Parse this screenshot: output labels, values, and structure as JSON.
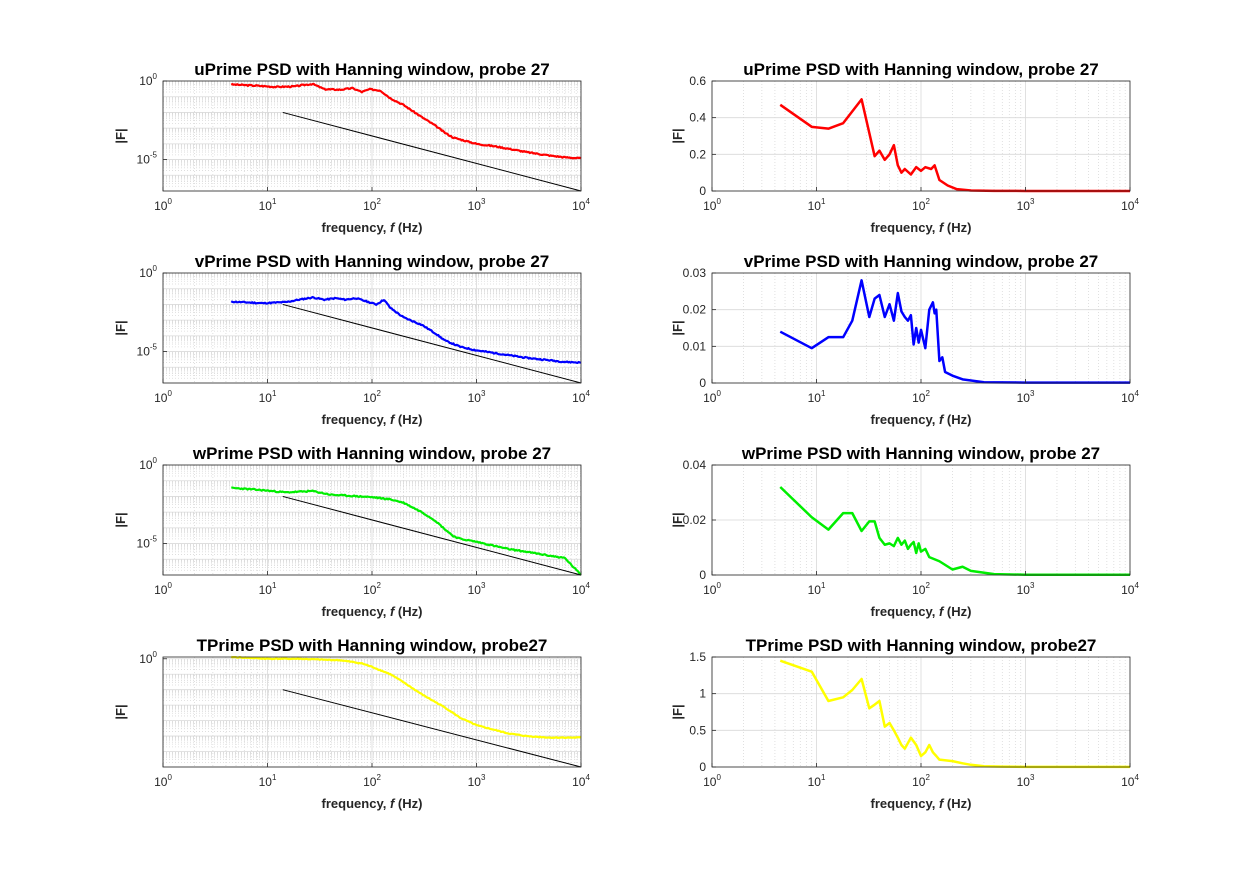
{
  "figure": {
    "background": "#ffffff",
    "grid_color": "#d9d9d9",
    "axis_color": "#262626",
    "reference_line_color": "#000000"
  },
  "chart_data": [
    {
      "id": "u-log",
      "type": "line",
      "title": "uPrime PSD with Hanning window, probe 27",
      "xlabel_main": "frequency, ",
      "xlabel_italic": "f",
      "xlabel_tail": " (Hz)",
      "ylabel": "|F|",
      "xscale": "log",
      "yscale": "log",
      "xlim": [
        1,
        10000
      ],
      "ylim": [
        1e-07,
        1
      ],
      "xticks": [
        {
          "base": "10",
          "exp": "0",
          "value": 1
        },
        {
          "base": "10",
          "exp": "1",
          "value": 10
        },
        {
          "base": "10",
          "exp": "2",
          "value": 100
        },
        {
          "base": "10",
          "exp": "3",
          "value": 1000
        },
        {
          "base": "10",
          "exp": "4",
          "value": 10000
        }
      ],
      "yticks": [
        {
          "base": "10",
          "exp": "0",
          "value": 1
        },
        {
          "base": "10",
          "exp": "-5",
          "value": 1e-05
        }
      ],
      "grid": true,
      "series": [
        {
          "color": "#ff0000",
          "width": 2.2,
          "noise": 0.07,
          "seed": 3,
          "x": [
            4.5,
            8,
            12,
            18,
            22,
            27,
            35,
            50,
            65,
            80,
            95,
            120,
            150,
            200,
            300,
            400,
            500,
            600,
            800,
            1000,
            1500,
            2000,
            3000,
            5000,
            7000,
            10000
          ],
          "y": [
            0.6,
            0.5,
            0.42,
            0.45,
            0.55,
            0.65,
            0.3,
            0.28,
            0.35,
            0.2,
            0.3,
            0.25,
            0.08,
            0.03,
            0.005,
            0.0015,
            0.0005,
            0.00025,
            0.00015,
            0.0001,
            7e-05,
            5e-05,
            3e-05,
            1.8e-05,
            1.4e-05,
            1.2e-05
          ]
        },
        {
          "color": "#000000",
          "width": 1,
          "noise": 0,
          "seed": 0,
          "x": [
            14,
            10000
          ],
          "y": [
            0.01,
            1e-07
          ]
        }
      ]
    },
    {
      "id": "u-lin",
      "type": "line",
      "title": "uPrime PSD with Hanning window, probe 27",
      "xlabel_main": "frequency, ",
      "xlabel_italic": "f",
      "xlabel_tail": " (Hz)",
      "ylabel": "|F|",
      "xscale": "log",
      "yscale": "linear",
      "xlim": [
        1,
        10000
      ],
      "ylim": [
        0,
        0.6
      ],
      "xticks": [
        {
          "base": "10",
          "exp": "0",
          "value": 1
        },
        {
          "base": "10",
          "exp": "1",
          "value": 10
        },
        {
          "base": "10",
          "exp": "2",
          "value": 100
        },
        {
          "base": "10",
          "exp": "3",
          "value": 1000
        },
        {
          "base": "10",
          "exp": "4",
          "value": 10000
        }
      ],
      "yticks": [
        {
          "label": "0",
          "value": 0
        },
        {
          "label": "0.2",
          "value": 0.2
        },
        {
          "label": "0.4",
          "value": 0.4
        },
        {
          "label": "0.6",
          "value": 0.6
        }
      ],
      "grid": true,
      "series": [
        {
          "color": "#ff0000",
          "width": 2.5,
          "noise": 0,
          "seed": 0,
          "x": [
            4.5,
            9,
            13,
            18,
            27,
            36,
            40,
            45,
            50,
            55,
            60,
            65,
            70,
            80,
            90,
            100,
            110,
            125,
            135,
            150,
            180,
            220,
            300,
            500,
            1000,
            10000
          ],
          "y": [
            0.47,
            0.35,
            0.34,
            0.37,
            0.5,
            0.19,
            0.22,
            0.17,
            0.2,
            0.25,
            0.14,
            0.1,
            0.12,
            0.09,
            0.13,
            0.11,
            0.13,
            0.12,
            0.14,
            0.06,
            0.03,
            0.01,
            0.003,
            0.001,
            0.0003,
            0.0001
          ]
        }
      ]
    },
    {
      "id": "v-log",
      "type": "line",
      "title": "vPrime PSD with Hanning window, probe 27",
      "xlabel_main": "frequency, ",
      "xlabel_italic": "f",
      "xlabel_tail": " (Hz)",
      "ylabel": "|F|",
      "xscale": "log",
      "yscale": "log",
      "xlim": [
        1,
        10000
      ],
      "ylim": [
        1e-07,
        1
      ],
      "xticks": [
        {
          "base": "10",
          "exp": "0",
          "value": 1
        },
        {
          "base": "10",
          "exp": "1",
          "value": 10
        },
        {
          "base": "10",
          "exp": "2",
          "value": 100
        },
        {
          "base": "10",
          "exp": "3",
          "value": 1000
        },
        {
          "base": "10",
          "exp": "4",
          "value": 10000
        }
      ],
      "yticks": [
        {
          "base": "10",
          "exp": "0",
          "value": 1
        },
        {
          "base": "10",
          "exp": "-5",
          "value": 1e-05
        }
      ],
      "grid": true,
      "series": [
        {
          "color": "#0000ff",
          "width": 2.2,
          "noise": 0.07,
          "seed": 11,
          "x": [
            4.5,
            9,
            15,
            20,
            27,
            35,
            45,
            55,
            70,
            90,
            110,
            130,
            150,
            200,
            300,
            400,
            500,
            700,
            1000,
            1500,
            2000,
            3000,
            5000,
            7000,
            10000
          ],
          "y": [
            0.015,
            0.012,
            0.014,
            0.02,
            0.028,
            0.02,
            0.025,
            0.02,
            0.025,
            0.015,
            0.01,
            0.02,
            0.006,
            0.0015,
            0.0005,
            0.00015,
            5e-05,
            2e-05,
            1.2e-05,
            8e-06,
            6e-06,
            4e-06,
            2.8e-06,
            2.2e-06,
            2e-06
          ]
        },
        {
          "color": "#000000",
          "width": 1,
          "noise": 0,
          "seed": 0,
          "x": [
            14,
            10000
          ],
          "y": [
            0.01,
            1e-07
          ]
        }
      ]
    },
    {
      "id": "v-lin",
      "type": "line",
      "title": "vPrime PSD with Hanning window, probe 27",
      "xlabel_main": "frequency, ",
      "xlabel_italic": "f",
      "xlabel_tail": " (Hz)",
      "ylabel": "|F|",
      "xscale": "log",
      "yscale": "linear",
      "xlim": [
        1,
        10000
      ],
      "ylim": [
        0,
        0.03
      ],
      "xticks": [
        {
          "base": "10",
          "exp": "0",
          "value": 1
        },
        {
          "base": "10",
          "exp": "1",
          "value": 10
        },
        {
          "base": "10",
          "exp": "2",
          "value": 100
        },
        {
          "base": "10",
          "exp": "3",
          "value": 1000
        },
        {
          "base": "10",
          "exp": "4",
          "value": 10000
        }
      ],
      "yticks": [
        {
          "label": "0",
          "value": 0
        },
        {
          "label": "0.01",
          "value": 0.01
        },
        {
          "label": "0.02",
          "value": 0.02
        },
        {
          "label": "0.03",
          "value": 0.03
        }
      ],
      "grid": true,
      "series": [
        {
          "color": "#0000ff",
          "width": 2.5,
          "noise": 0,
          "seed": 0,
          "x": [
            4.5,
            9,
            13,
            18,
            22,
            27,
            32,
            36,
            40,
            45,
            50,
            55,
            60,
            65,
            70,
            75,
            80,
            85,
            90,
            95,
            100,
            110,
            120,
            130,
            135,
            140,
            150,
            160,
            170,
            200,
            250,
            400,
            1000,
            10000
          ],
          "y": [
            0.014,
            0.0095,
            0.0125,
            0.0125,
            0.017,
            0.028,
            0.018,
            0.023,
            0.024,
            0.018,
            0.0215,
            0.017,
            0.0245,
            0.0195,
            0.018,
            0.017,
            0.0185,
            0.0105,
            0.015,
            0.011,
            0.0145,
            0.0095,
            0.02,
            0.022,
            0.019,
            0.02,
            0.006,
            0.007,
            0.003,
            0.002,
            0.001,
            0.0002,
            0.0001,
            0.0001
          ]
        }
      ]
    },
    {
      "id": "w-log",
      "type": "line",
      "title": "wPrime PSD with Hanning window, probe 27",
      "xlabel_main": "frequency, ",
      "xlabel_italic": "f",
      "xlabel_tail": " (Hz)",
      "ylabel": "|F|",
      "xscale": "log",
      "yscale": "log",
      "xlim": [
        1,
        10000
      ],
      "ylim": [
        1e-07,
        1
      ],
      "xticks": [
        {
          "base": "10",
          "exp": "0",
          "value": 1
        },
        {
          "base": "10",
          "exp": "1",
          "value": 10
        },
        {
          "base": "10",
          "exp": "2",
          "value": 100
        },
        {
          "base": "10",
          "exp": "3",
          "value": 1000
        },
        {
          "base": "10",
          "exp": "4",
          "value": 10000
        }
      ],
      "yticks": [
        {
          "base": "10",
          "exp": "0",
          "value": 1
        },
        {
          "base": "10",
          "exp": "-5",
          "value": 1e-05
        }
      ],
      "grid": true,
      "series": [
        {
          "color": "#00ee00",
          "width": 2.2,
          "noise": 0.07,
          "seed": 23,
          "x": [
            4.5,
            9,
            15,
            20,
            27,
            40,
            60,
            100,
            150,
            200,
            300,
            400,
            500,
            600,
            700,
            1000,
            1500,
            2000,
            3000,
            5000,
            7000,
            10000
          ],
          "y": [
            0.035,
            0.025,
            0.018,
            0.02,
            0.022,
            0.013,
            0.011,
            0.009,
            0.0065,
            0.004,
            0.001,
            0.0003,
            8e-05,
            3e-05,
            2e-05,
            1.3e-05,
            7e-06,
            4.5e-06,
            3e-06,
            1.7e-06,
            1.2e-06,
            1e-07
          ]
        },
        {
          "color": "#000000",
          "width": 1,
          "noise": 0,
          "seed": 0,
          "x": [
            14,
            10000
          ],
          "y": [
            0.01,
            1e-07
          ]
        }
      ]
    },
    {
      "id": "w-lin",
      "type": "line",
      "title": "wPrime PSD with Hanning window, probe 27",
      "xlabel_main": "frequency, ",
      "xlabel_italic": "f",
      "xlabel_tail": " (Hz)",
      "ylabel": "|F|",
      "xscale": "log",
      "yscale": "linear",
      "xlim": [
        1,
        10000
      ],
      "ylim": [
        0,
        0.04
      ],
      "xticks": [
        {
          "base": "10",
          "exp": "0",
          "value": 1
        },
        {
          "base": "10",
          "exp": "1",
          "value": 10
        },
        {
          "base": "10",
          "exp": "2",
          "value": 100
        },
        {
          "base": "10",
          "exp": "3",
          "value": 1000
        },
        {
          "base": "10",
          "exp": "4",
          "value": 10000
        }
      ],
      "yticks": [
        {
          "label": "0",
          "value": 0
        },
        {
          "label": "0.02",
          "value": 0.02
        },
        {
          "label": "0.04",
          "value": 0.04
        }
      ],
      "grid": true,
      "series": [
        {
          "color": "#00ee00",
          "width": 2.5,
          "noise": 0,
          "seed": 0,
          "x": [
            4.5,
            9,
            13,
            18,
            22,
            27,
            32,
            36,
            40,
            45,
            50,
            55,
            60,
            65,
            70,
            75,
            80,
            85,
            90,
            95,
            100,
            110,
            120,
            150,
            200,
            250,
            300,
            500,
            1000,
            10000
          ],
          "y": [
            0.032,
            0.021,
            0.0165,
            0.0225,
            0.0225,
            0.016,
            0.0195,
            0.0195,
            0.0135,
            0.011,
            0.0115,
            0.0105,
            0.0135,
            0.011,
            0.0125,
            0.0095,
            0.011,
            0.012,
            0.008,
            0.0115,
            0.0085,
            0.0095,
            0.0065,
            0.005,
            0.002,
            0.003,
            0.0015,
            0.0003,
            0.0001,
            0.0001
          ]
        }
      ]
    },
    {
      "id": "t-log",
      "type": "line",
      "title": "TPrime PSD with Hanning window, probe27",
      "xlabel_main": "frequency, ",
      "xlabel_italic": "f",
      "xlabel_tail": " (Hz)",
      "ylabel": "|F|",
      "xscale": "log",
      "yscale": "log",
      "xlim": [
        1,
        10000
      ],
      "ylim": [
        1e-07,
        1.3
      ],
      "xticks": [
        {
          "base": "10",
          "exp": "0",
          "value": 1
        },
        {
          "base": "10",
          "exp": "1",
          "value": 10
        },
        {
          "base": "10",
          "exp": "2",
          "value": 100
        },
        {
          "base": "10",
          "exp": "3",
          "value": 1000
        },
        {
          "base": "10",
          "exp": "4",
          "value": 10000
        }
      ],
      "yticks": [
        {
          "base": "10",
          "exp": "0",
          "value": 1
        }
      ],
      "grid": true,
      "series": [
        {
          "color": "#ffff00",
          "width": 2.2,
          "noise": 0.05,
          "seed": 41,
          "x": [
            4.5,
            10,
            20,
            30,
            50,
            80,
            100,
            150,
            200,
            300,
            500,
            700,
            1000,
            2000,
            3000,
            5000,
            7000,
            10000
          ],
          "y": [
            1.3,
            1.0,
            1.0,
            0.9,
            0.8,
            0.5,
            0.3,
            0.1,
            0.03,
            0.005,
            0.0007,
            0.00015,
            5e-05,
            1.5e-05,
            1e-05,
            8e-06,
            8e-06,
            8e-06
          ]
        },
        {
          "color": "#000000",
          "width": 1,
          "noise": 0,
          "seed": 0,
          "x": [
            14,
            10000
          ],
          "y": [
            0.01,
            1e-07
          ]
        }
      ]
    },
    {
      "id": "t-lin",
      "type": "line",
      "title": "TPrime PSD with Hanning window, probe27",
      "xlabel_main": "frequency, ",
      "xlabel_italic": "f",
      "xlabel_tail": " (Hz)",
      "ylabel": "|F|",
      "xscale": "log",
      "yscale": "linear",
      "xlim": [
        1,
        10000
      ],
      "ylim": [
        0,
        1.5
      ],
      "xticks": [
        {
          "base": "10",
          "exp": "0",
          "value": 1
        },
        {
          "base": "10",
          "exp": "1",
          "value": 10
        },
        {
          "base": "10",
          "exp": "2",
          "value": 100
        },
        {
          "base": "10",
          "exp": "3",
          "value": 1000
        },
        {
          "base": "10",
          "exp": "4",
          "value": 10000
        }
      ],
      "yticks": [
        {
          "label": "0",
          "value": 0
        },
        {
          "label": "0.5",
          "value": 0.5
        },
        {
          "label": "1",
          "value": 1
        },
        {
          "label": "1.5",
          "value": 1.5
        }
      ],
      "grid": true,
      "series": [
        {
          "color": "#ffff00",
          "width": 2.5,
          "noise": 0,
          "seed": 0,
          "x": [
            4.5,
            9,
            13,
            18,
            22,
            27,
            32,
            36,
            40,
            45,
            50,
            55,
            60,
            65,
            70,
            80,
            90,
            100,
            110,
            120,
            130,
            140,
            150,
            200,
            250,
            300,
            400,
            600,
            1000,
            10000
          ],
          "y": [
            1.45,
            1.3,
            0.9,
            0.95,
            1.05,
            1.2,
            0.8,
            0.85,
            0.9,
            0.55,
            0.6,
            0.5,
            0.4,
            0.3,
            0.25,
            0.4,
            0.3,
            0.15,
            0.2,
            0.3,
            0.2,
            0.15,
            0.1,
            0.08,
            0.05,
            0.03,
            0.01,
            0.005,
            0.002,
            0.001
          ]
        },
        {
          "color": "#ffff00",
          "width": 2.5,
          "noise": 0,
          "seed": 0,
          "x": [],
          "y": []
        }
      ]
    }
  ]
}
